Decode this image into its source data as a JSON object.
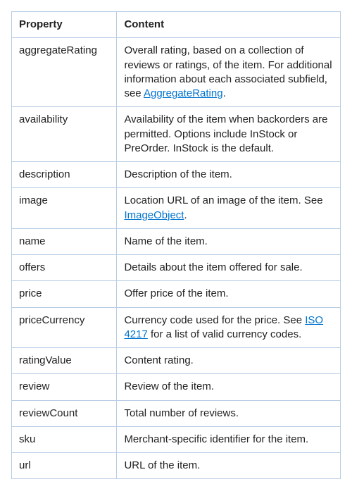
{
  "table": {
    "header": {
      "property": "Property",
      "content": "Content"
    },
    "rows": [
      {
        "property": "aggregateRating",
        "contentParts": [
          {
            "text": "Overall rating, based on a collection of reviews or ratings, of the item. For additional information about each associated subfield, see "
          },
          {
            "text": "AggregateRating",
            "link": true
          },
          {
            "text": "."
          }
        ]
      },
      {
        "property": "availability",
        "contentParts": [
          {
            "text": "Availability of the item when backorders are permitted. Options include InStock or PreOrder. InStock is the default."
          }
        ]
      },
      {
        "property": "description",
        "contentParts": [
          {
            "text": "Description of the item."
          }
        ]
      },
      {
        "property": "image",
        "contentParts": [
          {
            "text": "Location URL of an image of the item. See "
          },
          {
            "text": "ImageObject",
            "link": true
          },
          {
            "text": "."
          }
        ]
      },
      {
        "property": "name",
        "contentParts": [
          {
            "text": "Name of the item."
          }
        ]
      },
      {
        "property": "offers",
        "contentParts": [
          {
            "text": "Details about the item offered for sale."
          }
        ]
      },
      {
        "property": "price",
        "contentParts": [
          {
            "text": "Offer price of the item."
          }
        ]
      },
      {
        "property": "priceCurrency",
        "contentParts": [
          {
            "text": "Currency code used for the price. See "
          },
          {
            "text": "ISO 4217",
            "link": true
          },
          {
            "text": " for a list of valid currency codes."
          }
        ]
      },
      {
        "property": "ratingValue",
        "contentParts": [
          {
            "text": "Content rating."
          }
        ]
      },
      {
        "property": "review",
        "contentParts": [
          {
            "text": "Review of the item."
          }
        ]
      },
      {
        "property": "reviewCount",
        "contentParts": [
          {
            "text": "Total number of reviews."
          }
        ]
      },
      {
        "property": "sku",
        "contentParts": [
          {
            "text": "Merchant-specific identifier for the item."
          }
        ]
      },
      {
        "property": "url",
        "contentParts": [
          {
            "text": "URL of the item."
          }
        ]
      }
    ],
    "style": {
      "border_color": "#b8cce4",
      "link_color": "#0073cf",
      "text_color": "#222",
      "background_color": "#ffffff",
      "font_size_pt": 11,
      "header_font_weight": 700,
      "column_widths": [
        "32%",
        "68%"
      ]
    }
  }
}
